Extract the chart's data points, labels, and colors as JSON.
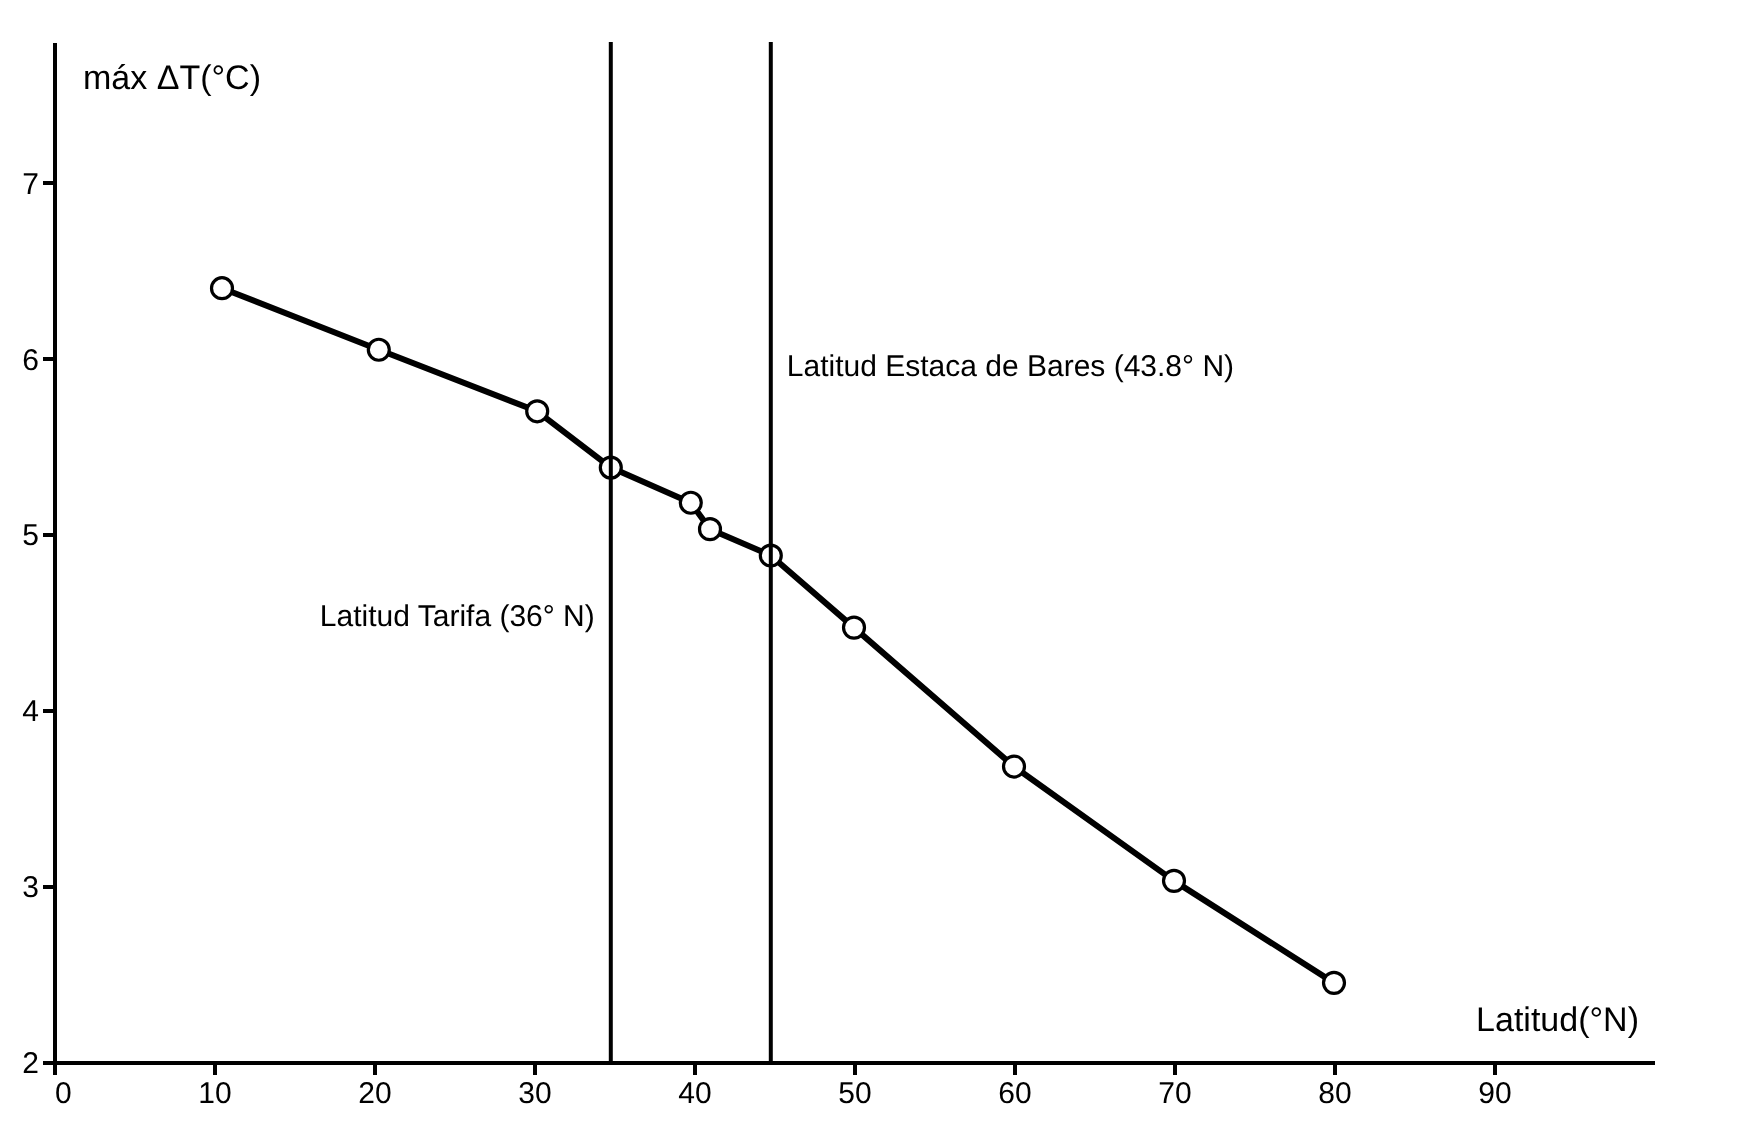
{
  "chart_data": {
    "type": "line",
    "xlabel": "Latitud(°N)",
    "ylabel": "máx ΔT(°C)",
    "x": [
      10.5,
      20.3,
      30.2,
      34.8,
      39.8,
      41.0,
      44.8,
      50,
      60,
      70,
      80
    ],
    "series": [
      {
        "color": "#000000",
        "values": [
          6.4,
          6.05,
          5.7,
          5.38,
          5.18,
          5.03,
          4.88,
          4.47,
          3.68,
          3.03,
          2.45
        ]
      }
    ],
    "xlim": [
      0,
      100
    ],
    "xticks": [
      0,
      10,
      20,
      30,
      40,
      50,
      60,
      70,
      80,
      90
    ],
    "ylim": [
      2,
      7.8
    ],
    "yticks": [
      2,
      3,
      4,
      5,
      6,
      7
    ],
    "marker": "circle",
    "line_style": "solid",
    "grid": false,
    "ref_lines": [
      {
        "axis": "x",
        "value": 34.8,
        "label": "Latitud Tarifa (36° N)",
        "color": "#000000"
      },
      {
        "axis": "x",
        "value": 44.8,
        "label": "Latitud Estaca de Bares (43.8° N)",
        "color": "#000000"
      }
    ]
  }
}
